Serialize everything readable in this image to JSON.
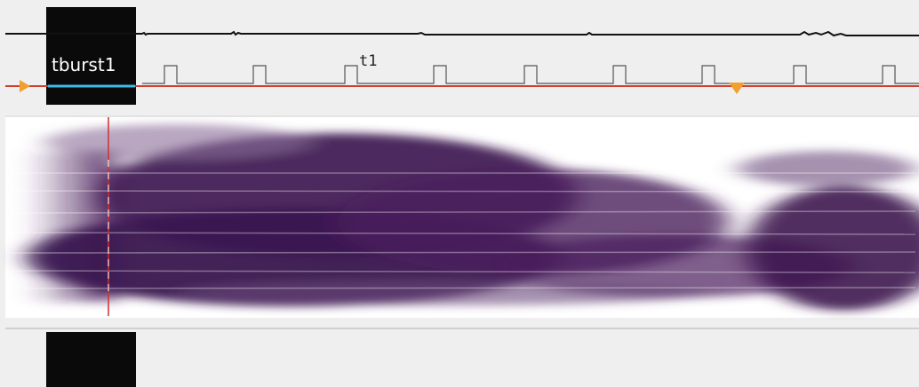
{
  "labels": {
    "marker": "tburst1",
    "cursor": "t1"
  }
}
